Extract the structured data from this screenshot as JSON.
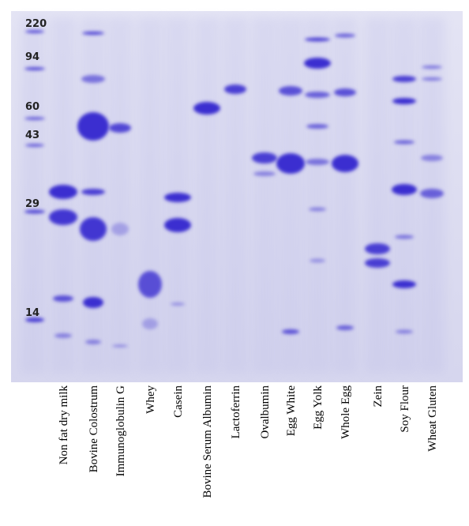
{
  "markers": [
    220,
    94,
    60,
    43,
    29,
    14
  ],
  "lanes": [
    "Non fat dry milk",
    "Bovine Colostrum",
    "Immunoglobulin G",
    "Whey",
    "Casein",
    "Bovine Serum Albumin",
    "Lactoferrin",
    "Ovalbumin",
    "Egg White",
    "Egg Yolk",
    "Whole Egg",
    "Zein",
    "Soy Flour",
    "Wheat Gluten"
  ]
}
